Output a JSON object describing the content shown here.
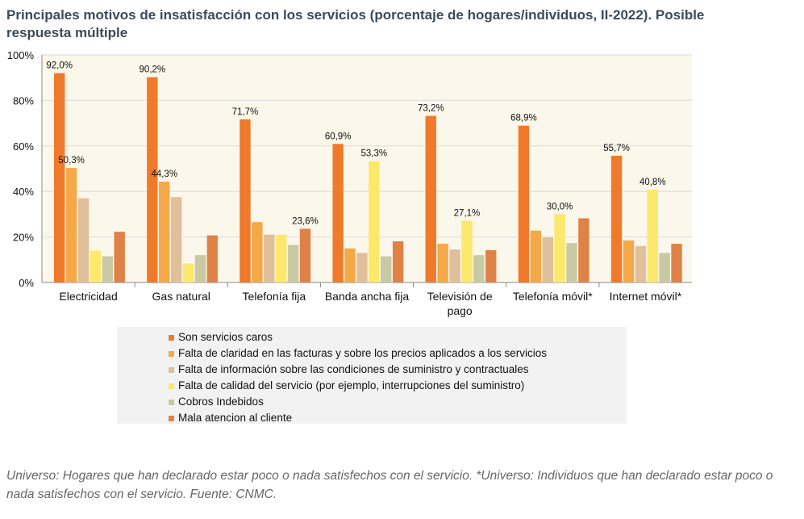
{
  "chart_data": {
    "type": "bar",
    "title": "Principales motivos de insatisfacción con los servicios (porcentaje de hogares/individuos, II-2022). Posible respuesta múltiple",
    "xlabel": "",
    "ylabel": "",
    "ylim": [
      0,
      100
    ],
    "yticks": [
      "0%",
      "20%",
      "40%",
      "60%",
      "80%",
      "100%"
    ],
    "grid": true,
    "categories": [
      [
        "Electricidad"
      ],
      [
        "Gas natural"
      ],
      [
        "Telefonía fija"
      ],
      [
        "Banda ancha fija"
      ],
      [
        "Televisión de",
        "pago"
      ],
      [
        "Telefonía móvil*"
      ],
      [
        "Internet móvil*"
      ]
    ],
    "series": [
      {
        "name": "Son servicios caros",
        "color": "#f07a2b",
        "values": [
          92.0,
          90.2,
          71.7,
          60.9,
          73.2,
          68.9,
          55.7
        ]
      },
      {
        "name": "Falta de claridad en las facturas y sobre los precios aplicados a los servicios",
        "color": "#f5a847",
        "values": [
          50.3,
          44.3,
          26.5,
          15.0,
          17.0,
          22.8,
          18.5
        ]
      },
      {
        "name": "Falta de información sobre las condiciones de suministro y contractuales",
        "color": "#e0c09a",
        "values": [
          37.0,
          37.5,
          21.0,
          13.0,
          14.5,
          19.8,
          16.0
        ]
      },
      {
        "name": "Falta de calidad del servicio (por ejemplo, interrupciones del suministro)",
        "color": "#fce86a",
        "values": [
          14.0,
          8.3,
          21.0,
          53.3,
          27.1,
          30.0,
          40.8
        ]
      },
      {
        "name": "Cobros Indebidos",
        "color": "#c9c9a3",
        "values": [
          11.5,
          12.0,
          16.5,
          11.5,
          12.0,
          17.3,
          13.0
        ]
      },
      {
        "name": "Mala atencion al cliente",
        "color": "#df8248",
        "values": [
          22.3,
          20.7,
          23.6,
          18.1,
          14.2,
          28.2,
          17.0
        ]
      }
    ],
    "data_labels": [
      {
        "category": 0,
        "series": 0,
        "text": "92,0%"
      },
      {
        "category": 0,
        "series": 1,
        "text": "50,3%"
      },
      {
        "category": 1,
        "series": 0,
        "text": "90,2%"
      },
      {
        "category": 1,
        "series": 1,
        "text": "44,3%"
      },
      {
        "category": 2,
        "series": 0,
        "text": "71,7%"
      },
      {
        "category": 2,
        "series": 5,
        "text": "23,6%"
      },
      {
        "category": 3,
        "series": 0,
        "text": "60,9%"
      },
      {
        "category": 3,
        "series": 3,
        "text": "53,3%"
      },
      {
        "category": 4,
        "series": 0,
        "text": "73,2%"
      },
      {
        "category": 4,
        "series": 3,
        "text": "27,1%"
      },
      {
        "category": 5,
        "series": 0,
        "text": "68,9%"
      },
      {
        "category": 5,
        "series": 3,
        "text": "30,0%"
      },
      {
        "category": 6,
        "series": 0,
        "text": "55,7%"
      },
      {
        "category": 6,
        "series": 3,
        "text": "40,8%"
      }
    ],
    "legend_position": "bottom"
  },
  "footnote": "Universo: Hogares que han declarado estar poco o nada satisfechos con el servicio. *Universo: Individuos que han declarado estar poco o nada satisfechos con el servicio. Fuente: CNMC."
}
